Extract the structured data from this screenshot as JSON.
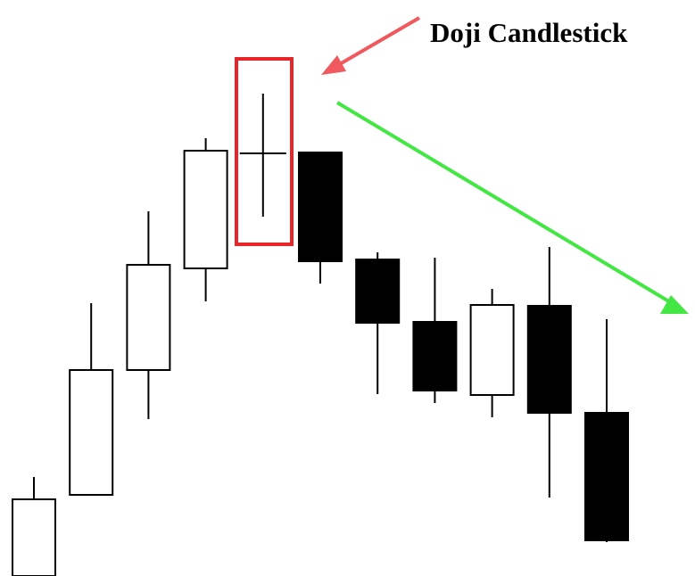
{
  "chart_data": {
    "type": "candlestick",
    "annotation": "Doji Candlestick",
    "open": [
      0,
      9.1,
      23.1,
      34.5,
      47.4,
      47.5,
      35.5,
      28.5,
      20.3,
      30.3,
      18.3
    ],
    "high": [
      11.1,
      30.6,
      40.9,
      49.1,
      54.1,
      47.5,
      36.3,
      35.7,
      32.2,
      36.9,
      28.8
    ],
    "low": [
      0,
      9.1,
      17.6,
      30.8,
      40.3,
      32.8,
      20.4,
      19.4,
      17.8,
      8.8,
      3.8
    ],
    "close": [
      8.6,
      23.1,
      34.9,
      47.7,
      47.4,
      35.3,
      28.4,
      20.8,
      30.4,
      18.3,
      4.0
    ],
    "up_color": "#ffffff",
    "down_color": "#000000",
    "ylim": [
      0,
      64.6
    ]
  }
}
